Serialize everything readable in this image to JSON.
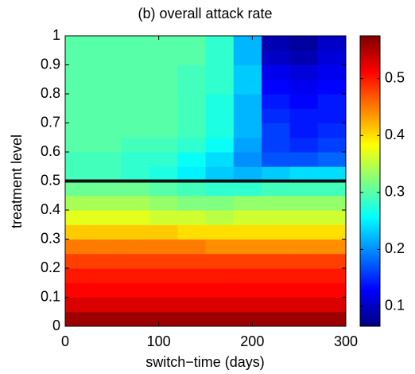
{
  "chart_data": {
    "type": "heatmap",
    "title": "(b) overall attack rate",
    "xlabel": "switch−time (days)",
    "ylabel": "treatment level",
    "xbins": [
      0,
      30,
      60,
      90,
      120,
      150,
      180,
      210,
      240,
      270,
      300
    ],
    "ybins": [
      0,
      0.05,
      0.1,
      0.15,
      0.2,
      0.25,
      0.3,
      0.35,
      0.4,
      0.45,
      0.5,
      0.55,
      0.6,
      0.65,
      0.7,
      0.75,
      0.8,
      0.85,
      0.9,
      0.95,
      1
    ],
    "values": [
      [
        0.56,
        0.56,
        0.56,
        0.56,
        0.56,
        0.56,
        0.56,
        0.56,
        0.56,
        0.56
      ],
      [
        0.53,
        0.53,
        0.53,
        0.53,
        0.53,
        0.53,
        0.53,
        0.53,
        0.53,
        0.53
      ],
      [
        0.51,
        0.51,
        0.51,
        0.51,
        0.51,
        0.51,
        0.51,
        0.51,
        0.51,
        0.51
      ],
      [
        0.5,
        0.5,
        0.5,
        0.5,
        0.5,
        0.5,
        0.5,
        0.5,
        0.5,
        0.5
      ],
      [
        0.48,
        0.48,
        0.48,
        0.48,
        0.48,
        0.48,
        0.48,
        0.48,
        0.48,
        0.48
      ],
      [
        0.45,
        0.45,
        0.45,
        0.45,
        0.45,
        0.44,
        0.44,
        0.44,
        0.44,
        0.44
      ],
      [
        0.41,
        0.41,
        0.41,
        0.41,
        0.4,
        0.4,
        0.4,
        0.4,
        0.4,
        0.4
      ],
      [
        0.37,
        0.37,
        0.37,
        0.36,
        0.36,
        0.35,
        0.36,
        0.36,
        0.36,
        0.36
      ],
      [
        0.34,
        0.34,
        0.34,
        0.33,
        0.32,
        0.32,
        0.33,
        0.33,
        0.33,
        0.33
      ],
      [
        0.31,
        0.31,
        0.31,
        0.3,
        0.29,
        0.28,
        0.28,
        0.29,
        0.29,
        0.29
      ],
      [
        0.29,
        0.29,
        0.28,
        0.27,
        0.25,
        0.23,
        0.22,
        0.23,
        0.24,
        0.24
      ],
      [
        0.29,
        0.29,
        0.28,
        0.28,
        0.26,
        0.24,
        0.2,
        0.17,
        0.17,
        0.18
      ],
      [
        0.3,
        0.3,
        0.29,
        0.29,
        0.28,
        0.26,
        0.21,
        0.16,
        0.15,
        0.16
      ],
      [
        0.3,
        0.3,
        0.3,
        0.3,
        0.29,
        0.27,
        0.22,
        0.16,
        0.14,
        0.15
      ],
      [
        0.3,
        0.3,
        0.3,
        0.3,
        0.29,
        0.27,
        0.22,
        0.15,
        0.14,
        0.14
      ],
      [
        0.3,
        0.3,
        0.3,
        0.3,
        0.29,
        0.27,
        0.22,
        0.14,
        0.13,
        0.14
      ],
      [
        0.3,
        0.3,
        0.3,
        0.3,
        0.29,
        0.28,
        0.23,
        0.13,
        0.12,
        0.13
      ],
      [
        0.3,
        0.3,
        0.3,
        0.3,
        0.29,
        0.28,
        0.23,
        0.12,
        0.11,
        0.12
      ],
      [
        0.3,
        0.3,
        0.3,
        0.3,
        0.3,
        0.28,
        0.22,
        0.1,
        0.09,
        0.11
      ],
      [
        0.3,
        0.3,
        0.3,
        0.3,
        0.3,
        0.28,
        0.22,
        0.09,
        0.08,
        0.1
      ]
    ],
    "xlim": [
      0,
      300
    ],
    "xticks": [
      0,
      100,
      200,
      300
    ],
    "ylim": [
      0,
      1
    ],
    "yticks": [
      0,
      0.1,
      0.2,
      0.3,
      0.4,
      0.5,
      0.6,
      0.7,
      0.8,
      0.9,
      1
    ],
    "hline": 0.5,
    "hline_color": "#111111",
    "colormap": "jet",
    "clim": [
      0.065,
      0.575
    ],
    "cticks": [
      0.1,
      0.2,
      0.3,
      0.4,
      0.5
    ]
  }
}
